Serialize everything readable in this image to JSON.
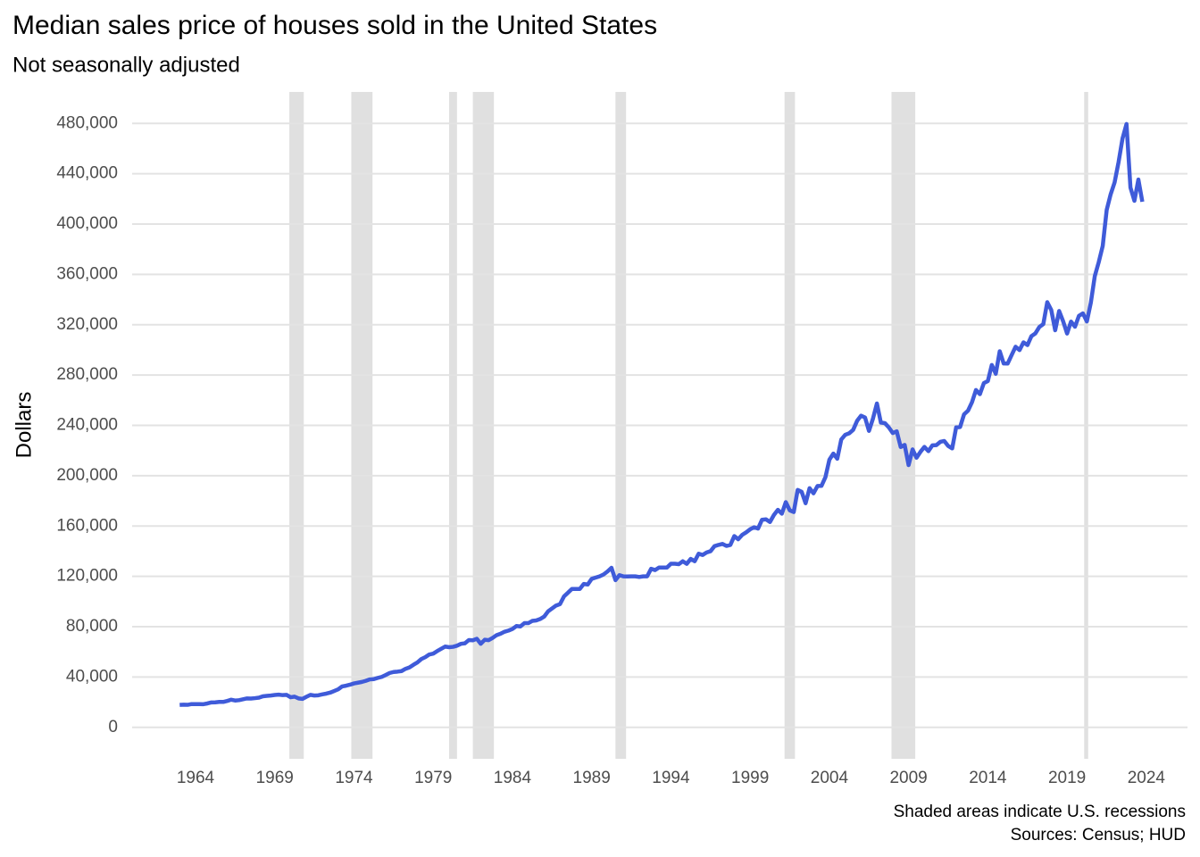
{
  "chart_data": {
    "type": "line",
    "title": "Median sales price of houses sold in the United States",
    "subtitle": "Not seasonally adjusted",
    "y_label": "Dollars",
    "caption": [
      "Shaded areas indicate U.S. recessions",
      "Sources: Census; HUD"
    ],
    "color": "#3f5bd9",
    "recession_color": "#e0e0e0",
    "grid": true,
    "xlim": [
      1960,
      2026.6
    ],
    "ylim": [
      -25000,
      505000
    ],
    "xticks": [
      1964,
      1969,
      1974,
      1979,
      1984,
      1989,
      1994,
      1999,
      2004,
      2009,
      2014,
      2019,
      2024
    ],
    "yticks": [
      0,
      {
        "value": 40000,
        "label": "40,000"
      },
      {
        "value": 80000,
        "label": "80,000"
      },
      {
        "value": 120000,
        "label": "120,000"
      },
      {
        "value": 160000,
        "label": "160,000"
      },
      {
        "value": 200000,
        "label": "200,000"
      },
      {
        "value": 240000,
        "label": "240,000"
      },
      {
        "value": 280000,
        "label": "280,000"
      },
      {
        "value": 320000,
        "label": "320,000"
      },
      {
        "value": 360000,
        "label": "360,000"
      },
      {
        "value": 400000,
        "label": "400,000"
      },
      {
        "value": 440000,
        "label": "440,000"
      },
      {
        "value": 480000,
        "label": "480,000"
      }
    ],
    "recessions": [
      [
        1969.92,
        1970.83
      ],
      [
        1973.83,
        1975.17
      ],
      [
        1980.0,
        1980.5
      ],
      [
        1981.5,
        1982.83
      ],
      [
        1990.5,
        1991.17
      ],
      [
        2001.17,
        2001.83
      ],
      [
        2007.92,
        2009.42
      ],
      [
        2020.08,
        2020.33
      ]
    ],
    "x": [
      1963,
      1963.25,
      1963.5,
      1963.75,
      1964,
      1964.25,
      1964.5,
      1964.75,
      1965,
      1965.25,
      1965.5,
      1965.75,
      1966,
      1966.25,
      1966.5,
      1966.75,
      1967,
      1967.25,
      1967.5,
      1967.75,
      1968,
      1968.25,
      1968.5,
      1968.75,
      1969,
      1969.25,
      1969.5,
      1969.75,
      1970,
      1970.25,
      1970.5,
      1970.75,
      1971,
      1971.25,
      1971.5,
      1971.75,
      1972,
      1972.25,
      1972.5,
      1972.75,
      1973,
      1973.25,
      1973.5,
      1973.75,
      1974,
      1974.25,
      1974.5,
      1974.75,
      1975,
      1975.25,
      1975.5,
      1975.75,
      1976,
      1976.25,
      1976.5,
      1976.75,
      1977,
      1977.25,
      1977.5,
      1977.75,
      1978,
      1978.25,
      1978.5,
      1978.75,
      1979,
      1979.25,
      1979.5,
      1979.75,
      1980,
      1980.25,
      1980.5,
      1980.75,
      1981,
      1981.25,
      1981.5,
      1981.75,
      1982,
      1982.25,
      1982.5,
      1982.75,
      1983,
      1983.25,
      1983.5,
      1983.75,
      1984,
      1984.25,
      1984.5,
      1984.75,
      1985,
      1985.25,
      1985.5,
      1985.75,
      1986,
      1986.25,
      1986.5,
      1986.75,
      1987,
      1987.25,
      1987.5,
      1987.75,
      1988,
      1988.25,
      1988.5,
      1988.75,
      1989,
      1989.25,
      1989.5,
      1989.75,
      1990,
      1990.25,
      1990.5,
      1990.75,
      1991,
      1991.25,
      1991.5,
      1991.75,
      1992,
      1992.25,
      1992.5,
      1992.75,
      1993,
      1993.25,
      1993.5,
      1993.75,
      1994,
      1994.25,
      1994.5,
      1994.75,
      1995,
      1995.25,
      1995.5,
      1995.75,
      1996,
      1996.25,
      1996.5,
      1996.75,
      1997,
      1997.25,
      1997.5,
      1997.75,
      1998,
      1998.25,
      1998.5,
      1998.75,
      1999,
      1999.25,
      1999.5,
      1999.75,
      2000,
      2000.25,
      2000.5,
      2000.75,
      2001,
      2001.25,
      2001.5,
      2001.75,
      2002,
      2002.25,
      2002.5,
      2002.75,
      2003,
      2003.25,
      2003.5,
      2003.75,
      2004,
      2004.25,
      2004.5,
      2004.75,
      2005,
      2005.25,
      2005.5,
      2005.75,
      2006,
      2006.25,
      2006.5,
      2006.75,
      2007,
      2007.25,
      2007.5,
      2007.75,
      2008,
      2008.25,
      2008.5,
      2008.75,
      2009,
      2009.25,
      2009.5,
      2009.75,
      2010,
      2010.25,
      2010.5,
      2010.75,
      2011,
      2011.25,
      2011.5,
      2011.75,
      2012,
      2012.25,
      2012.5,
      2012.75,
      2013,
      2013.25,
      2013.5,
      2013.75,
      2014,
      2014.25,
      2014.5,
      2014.75,
      2015,
      2015.25,
      2015.5,
      2015.75,
      2016,
      2016.25,
      2016.5,
      2016.75,
      2017,
      2017.25,
      2017.5,
      2017.75,
      2018,
      2018.25,
      2018.5,
      2018.75,
      2019,
      2019.25,
      2019.5,
      2019.75,
      2020,
      2020.25,
      2020.5,
      2020.75,
      2021,
      2021.25,
      2021.5,
      2021.75,
      2022,
      2022.25,
      2022.5,
      2022.75,
      2023,
      2023.25,
      2023.5,
      2023.75
    ],
    "values": [
      17800,
      18000,
      17900,
      18500,
      18500,
      18500,
      18400,
      19000,
      19800,
      19900,
      20200,
      20200,
      21000,
      22000,
      21300,
      21600,
      22300,
      23000,
      22900,
      23200,
      23600,
      24700,
      25000,
      25300,
      25700,
      26000,
      25600,
      25800,
      23900,
      24400,
      23000,
      22600,
      24300,
      25800,
      25300,
      25500,
      26200,
      26800,
      27600,
      28900,
      30200,
      32500,
      33100,
      33900,
      34900,
      35500,
      36100,
      37000,
      38100,
      38300,
      39300,
      40100,
      41600,
      43200,
      44000,
      44300,
      44700,
      46500,
      47600,
      49700,
      51600,
      54300,
      55800,
      57900,
      58600,
      60600,
      62400,
      64200,
      63700,
      64000,
      64900,
      66400,
      66800,
      69400,
      69200,
      70400,
      66400,
      69600,
      69300,
      71100,
      73300,
      74400,
      76000,
      76900,
      78200,
      80500,
      80200,
      82800,
      82800,
      84600,
      85000,
      86100,
      88000,
      92200,
      94500,
      96800,
      97900,
      104000,
      107000,
      110000,
      110000,
      110000,
      114000,
      113500,
      118000,
      119000,
      120000,
      121500,
      123900,
      126800,
      117000,
      121000,
      120000,
      119900,
      120000,
      120000,
      119500,
      120000,
      120000,
      126000,
      125000,
      127000,
      127000,
      127000,
      130000,
      130000,
      129700,
      132000,
      130000,
      133900,
      132000,
      138000,
      137000,
      139000,
      140000,
      144000,
      145000,
      145800,
      144200,
      145000,
      152000,
      149500,
      153000,
      155000,
      157400,
      159000,
      158000,
      165000,
      165300,
      163200,
      168800,
      172900,
      169800,
      179000,
      172500,
      171100,
      188700,
      187200,
      178100,
      190100,
      186000,
      191800,
      191900,
      198800,
      212700,
      217600,
      213500,
      228800,
      232500,
      233700,
      236400,
      243600,
      247700,
      246300,
      235600,
      245400,
      257400,
      242200,
      241800,
      238400,
      233900,
      235300,
      222800,
      224500,
      208400,
      220900,
      214300,
      219000,
      222900,
      219500,
      224100,
      224300,
      226900,
      227600,
      223600,
      221700,
      238400,
      238700,
      248800,
      251700,
      258400,
      268100,
      264800,
      273600,
      275200,
      288000,
      281000,
      298900,
      289200,
      289100,
      295800,
      302500,
      299800,
      306000,
      303800,
      310900,
      313100,
      318200,
      320500,
      337900,
      331800,
      315600,
      330900,
      322800,
      313000,
      322500,
      318400,
      327100,
      329000,
      322600,
      337500,
      358700,
      369800,
      382600,
      411200,
      423600,
      433100,
      449300,
      468000,
      479500,
      429000,
      418500,
      435400,
      417700
    ]
  }
}
